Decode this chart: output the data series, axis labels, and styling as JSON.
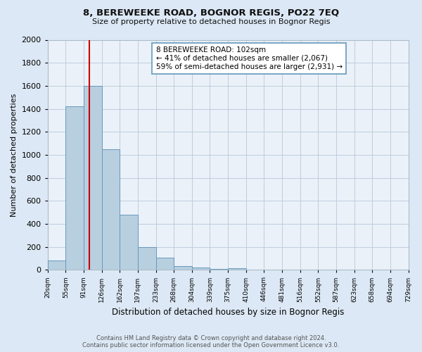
{
  "title": "8, BEREWEEKE ROAD, BOGNOR REGIS, PO22 7EQ",
  "subtitle": "Size of property relative to detached houses in Bognor Regis",
  "xlabel": "Distribution of detached houses by size in Bognor Regis",
  "ylabel": "Number of detached properties",
  "bin_labels": [
    "20sqm",
    "55sqm",
    "91sqm",
    "126sqm",
    "162sqm",
    "197sqm",
    "233sqm",
    "268sqm",
    "304sqm",
    "339sqm",
    "375sqm",
    "410sqm",
    "446sqm",
    "481sqm",
    "516sqm",
    "552sqm",
    "587sqm",
    "623sqm",
    "658sqm",
    "694sqm",
    "729sqm"
  ],
  "bar_values": [
    80,
    1420,
    1600,
    1050,
    480,
    200,
    105,
    35,
    20,
    10,
    15,
    0,
    0,
    0,
    0,
    0,
    0,
    0,
    0,
    0
  ],
  "bar_color": "#b8cfe0",
  "bar_edge_color": "#6699bb",
  "vline_x_bin": 2.7,
  "vline_color": "#cc0000",
  "ylim": [
    0,
    2000
  ],
  "yticks": [
    0,
    200,
    400,
    600,
    800,
    1000,
    1200,
    1400,
    1600,
    1800,
    2000
  ],
  "annotation_box_text": "8 BEREWEEKE ROAD: 102sqm\n← 41% of detached houses are smaller (2,067)\n59% of semi-detached houses are larger (2,931) →",
  "annotation_box_color": "#ffffff",
  "annotation_box_edge": "#6699bb",
  "bg_color": "#dce8f5",
  "plot_bg_color": "#eaf1f8",
  "footer_line1": "Contains HM Land Registry data © Crown copyright and database right 2024.",
  "footer_line2": "Contains public sector information licensed under the Open Government Licence v3.0.",
  "n_bars": 20,
  "n_ticks": 21
}
